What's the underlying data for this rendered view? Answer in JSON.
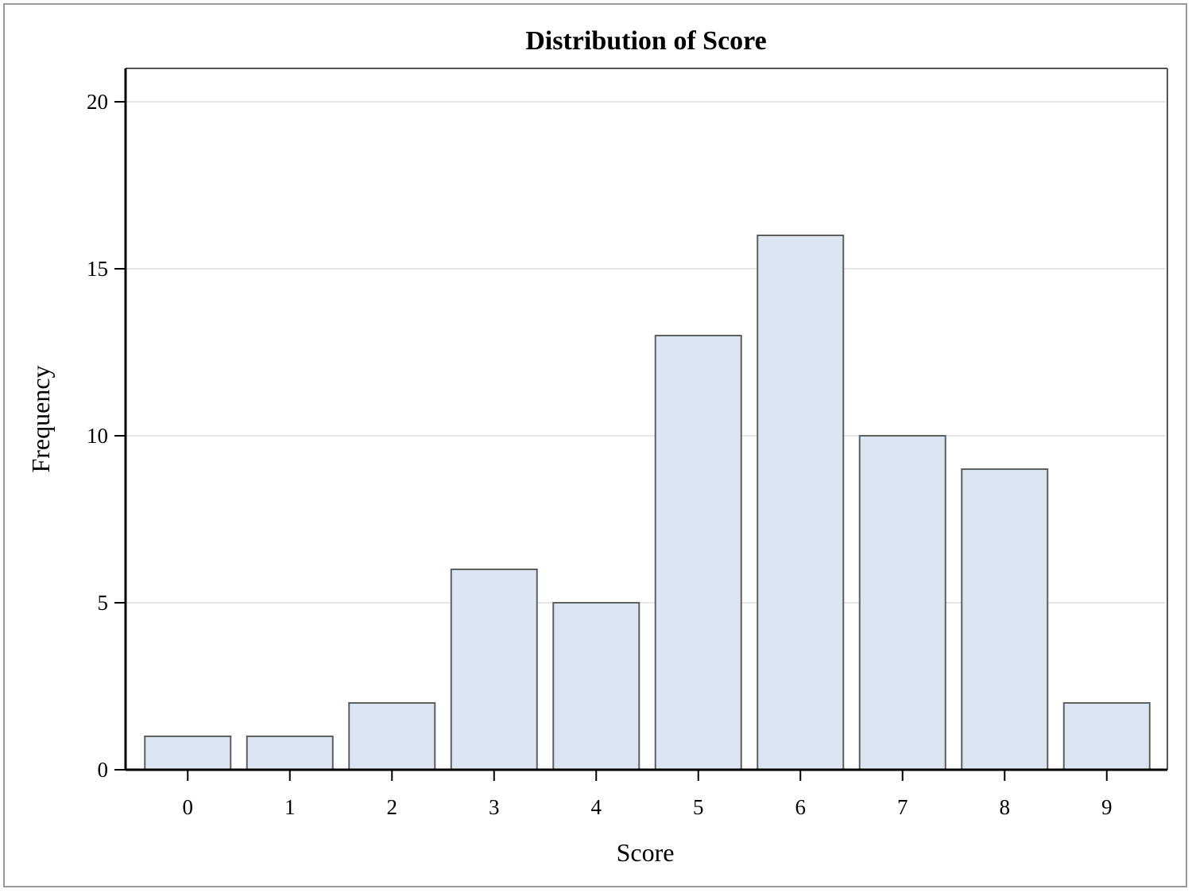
{
  "colors": {
    "bar_fill": "#dce6f2",
    "bar_stroke": "#5f5f5f",
    "grid": "#e8e8e8",
    "axis": "#000000",
    "frame": "#9a9a9a"
  },
  "chart_data": {
    "type": "bar",
    "title": "Distribution of Score",
    "xlabel": "Score",
    "ylabel": "Frequency",
    "categories": [
      "0",
      "1",
      "2",
      "3",
      "4",
      "5",
      "6",
      "7",
      "8",
      "9"
    ],
    "values": [
      1,
      1,
      2,
      6,
      5,
      13,
      16,
      10,
      9,
      2
    ],
    "ylim": [
      0,
      21
    ],
    "yticks": [
      0,
      5,
      10,
      15,
      20
    ],
    "grid": true,
    "legend": "none"
  }
}
